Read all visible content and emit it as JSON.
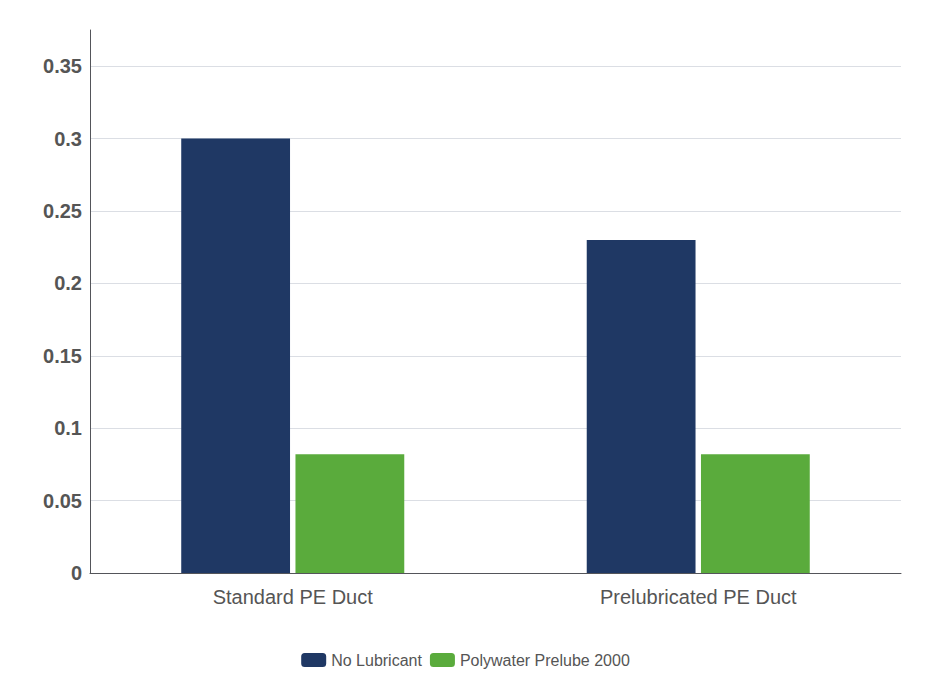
{
  "chart_data": {
    "type": "bar",
    "categories": [
      "Standard PE Duct",
      "Prelubricated PE Duct"
    ],
    "series": [
      {
        "name": "No Lubricant",
        "color": "#1F3864",
        "values": [
          0.3,
          0.23
        ]
      },
      {
        "name": "Polywater Prelube 2000",
        "color": "#5AAB3C",
        "values": [
          0.082,
          0.082
        ]
      }
    ],
    "ylim": [
      0,
      0.375
    ],
    "yticks": [
      0,
      0.05,
      0.1,
      0.15,
      0.2,
      0.25,
      0.3,
      0.35
    ],
    "grid": true,
    "legend": "bottom"
  }
}
